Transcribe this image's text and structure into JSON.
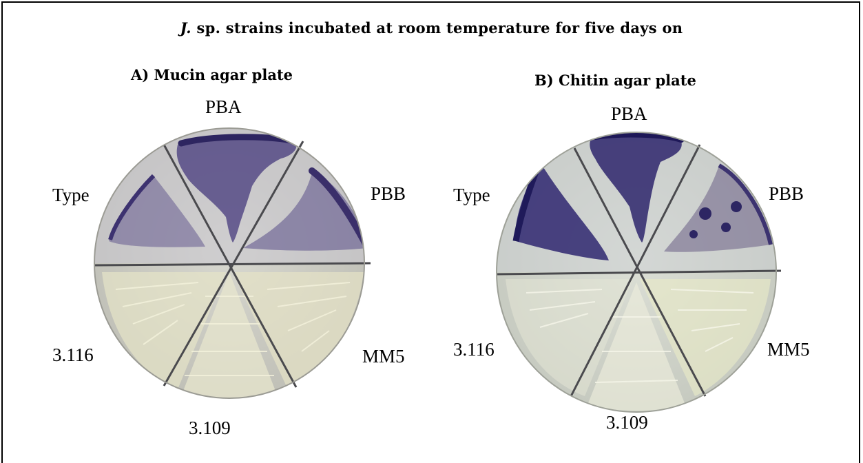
{
  "figure": {
    "title_species": "J.",
    "title_rest": " sp. strains incubated at room temperature for five days on",
    "panels": [
      {
        "title": "A) Mucin agar plate",
        "labels": {
          "pba": "PBA",
          "type": "Type",
          "pbb": "PBB",
          "s3116": "3.116",
          "mm5": "MM5",
          "s3109": "3.109"
        },
        "colors": {
          "stain": "#3a2f6e",
          "agar": "#cfcfc6",
          "growth": "#e9e7cf"
        }
      },
      {
        "title": "B) Chitin agar plate",
        "labels": {
          "pba": "PBA",
          "type": "Type",
          "pbb": "PBB",
          "s3116": "3.116",
          "mm5": "MM5",
          "s3109": "3.109"
        },
        "colors": {
          "stain": "#2b2466",
          "agar": "#d2d4cc",
          "growth": "#eceedd"
        }
      }
    ]
  }
}
